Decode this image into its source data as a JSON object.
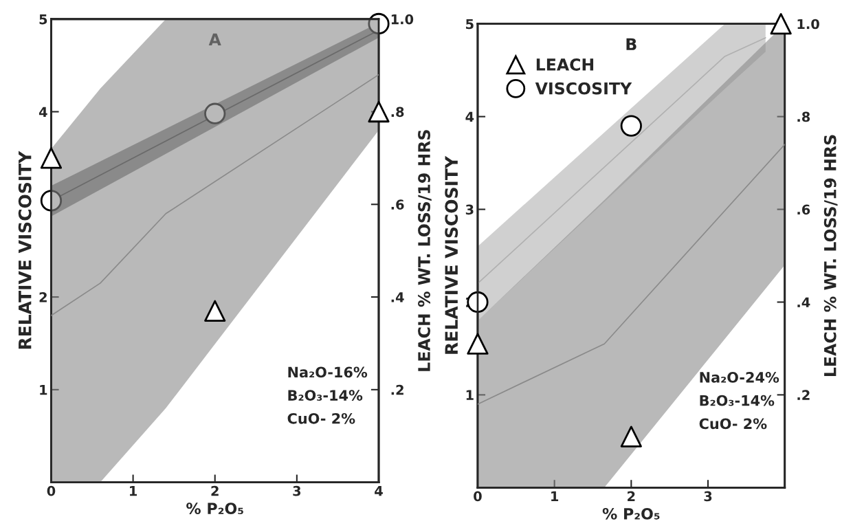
{
  "chart_data": [
    {
      "type": "scatter",
      "xlabel": "% P₂O₅",
      "ylabel": "RELATIVE VISCOSITY",
      "y2label": "LEACH % WT. LOSS/19 HRS",
      "xlim": [
        0,
        4
      ],
      "xticks": [
        0,
        1,
        2,
        3,
        4
      ],
      "ylim": [
        0,
        5
      ],
      "yticks": [
        1,
        2,
        4,
        5
      ],
      "y2lim": [
        0,
        1.0
      ],
      "y2ticks": [
        {
          "value": 0.2,
          "label": ".2"
        },
        {
          "value": 0.4,
          "label": ".4"
        },
        {
          "value": 0.6,
          "label": ".6"
        },
        {
          "value": 0.8,
          "label": ".8"
        },
        {
          "value": 1.0,
          "label": "1.0"
        }
      ],
      "annotations": [
        "A",
        "Na₂O-16%",
        "B₂O₃-14%",
        "CuO- 2%"
      ],
      "grid": false,
      "legend": false,
      "series": [
        {
          "type": "line",
          "axis": "y2",
          "color": "#8a8a8a",
          "x": [
            0,
            0.6,
            1.4,
            4
          ],
          "values": [
            0.36,
            0.43,
            0.58,
            0.88
          ],
          "lower": [
            0,
            0,
            0.16,
            0.76
          ],
          "upper": [
            0.72,
            0.85,
            1.0,
            1.0
          ]
        },
        {
          "type": "line",
          "axis": "y",
          "color": "#3a3a3a",
          "x": [
            0,
            4
          ],
          "values": [
            3.04,
            4.88
          ],
          "lower": [
            2.87,
            4.8
          ],
          "upper": [
            3.2,
            4.96
          ]
        },
        {
          "type": "scatter",
          "axis": "y2",
          "marker": "triangle",
          "color": "#000000",
          "x": [
            0,
            2,
            4
          ],
          "values": [
            0.7,
            0.37,
            0.8
          ]
        },
        {
          "type": "scatter",
          "axis": "y",
          "marker": "circle",
          "color": "#000000",
          "x": [
            0,
            2,
            4
          ],
          "values": [
            3.04,
            3.98,
            4.95
          ]
        }
      ]
    },
    {
      "type": "scatter",
      "xlabel": "% P₂O₅",
      "ylabel": "RELATIVE VISCOSITY",
      "y2label": "LEACH % WT. LOSS/19 HRS",
      "xlim": [
        0,
        4
      ],
      "xticks": [
        0,
        1,
        2,
        3
      ],
      "ylim": [
        0,
        5
      ],
      "yticks": [
        1,
        2,
        3,
        4,
        5
      ],
      "y2lim": [
        0,
        1.0
      ],
      "y2ticks": [
        {
          "value": 0.2,
          "label": ".2"
        },
        {
          "value": 0.4,
          "label": ".4"
        },
        {
          "value": 0.6,
          "label": ".6"
        },
        {
          "value": 0.8,
          "label": ".8"
        },
        {
          "value": 1.0,
          "label": "1.0"
        }
      ],
      "annotations": [
        "B",
        "Na₂O-24%",
        "B₂O₃-14%",
        "CuO- 2%"
      ],
      "grid": false,
      "legend": "top left",
      "series": [
        {
          "type": "line",
          "axis": "y2",
          "color": "#8a8a8a",
          "x": [
            0,
            1.65,
            4
          ],
          "values": [
            0.18,
            0.31,
            0.74
          ],
          "lower": [
            0,
            0,
            0.48
          ],
          "upper": [
            0.36,
            0.62,
            1.0
          ]
        },
        {
          "type": "line",
          "axis": "y",
          "color": "#b0b0b0",
          "x": [
            0,
            3.22,
            3.75
          ],
          "values": [
            2.2,
            4.65,
            4.85
          ],
          "lower": [
            1.8,
            4.3,
            4.7
          ],
          "upper": [
            2.6,
            5.0,
            5.0
          ]
        },
        {
          "type": "scatter",
          "axis": "y2",
          "name": "LEACH",
          "marker": "triangle",
          "color": "#000000",
          "x": [
            0,
            2,
            3.95
          ],
          "values": [
            0.31,
            0.11,
            1.0
          ]
        },
        {
          "type": "scatter",
          "axis": "y",
          "name": "VISCOSITY",
          "marker": "circle",
          "color": "#000000",
          "x": [
            0,
            2
          ],
          "values": [
            2.0,
            3.9
          ]
        }
      ]
    }
  ]
}
